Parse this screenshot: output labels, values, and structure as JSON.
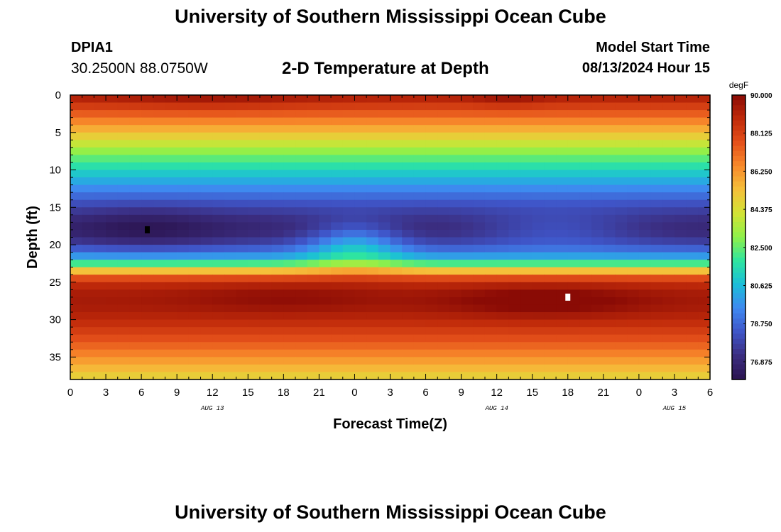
{
  "header": {
    "title": "University of Southern Mississippi Ocean Cube",
    "station_id": "DPIA1",
    "coords": "30.2500N  88.0750W",
    "plot_title": "2-D Temperature at Depth",
    "model_label": "Model Start Time",
    "model_time": "08/13/2024 Hour 15"
  },
  "footer": {
    "title": "University of Southern Mississippi Ocean Cube"
  },
  "chart_data": {
    "type": "heatmap",
    "title": "2-D Temperature at Depth",
    "xlabel": "Forecast Time(Z)",
    "ylabel": "Depth (ft)",
    "x_ticks": [
      "0",
      "3",
      "6",
      "9",
      "12",
      "15",
      "18",
      "21",
      "0",
      "3",
      "6",
      "9",
      "12",
      "15",
      "18",
      "21",
      "0",
      "3",
      "6"
    ],
    "x_range_hours": [
      0,
      54
    ],
    "day_labels": [
      {
        "label": "AUG 13",
        "hour": 12
      },
      {
        "label": "AUG 14",
        "hour": 36
      },
      {
        "label": "AUG 15",
        "hour": 51
      }
    ],
    "y_ticks": [
      0,
      5,
      10,
      15,
      20,
      25,
      30,
      35
    ],
    "y_range": [
      0,
      38
    ],
    "y_inverted": true,
    "colorbar": {
      "unit": "degF",
      "min": 76.0,
      "max": 90.0,
      "labels": [
        "90.000",
        "88.125",
        "86.250",
        "84.375",
        "82.500",
        "80.625",
        "78.750",
        "76.875"
      ],
      "colors": [
        "#2b1450",
        "#3b2d80",
        "#3f55c8",
        "#3f88f0",
        "#1bbdd9",
        "#2ee5a0",
        "#8ef04a",
        "#d2e335",
        "#f5c03a",
        "#f88a2b",
        "#e4501a",
        "#c02a0a",
        "#8a0b05"
      ]
    },
    "depth_profile": [
      {
        "depth": 0,
        "value": 89.4
      },
      {
        "depth": 1,
        "value": 88.6
      },
      {
        "depth": 2,
        "value": 87.8
      },
      {
        "depth": 3,
        "value": 87.0
      },
      {
        "depth": 4,
        "value": 86.2
      },
      {
        "depth": 5,
        "value": 85.3
      },
      {
        "depth": 6,
        "value": 84.4
      },
      {
        "depth": 7,
        "value": 83.5
      },
      {
        "depth": 8,
        "value": 82.7
      },
      {
        "depth": 9,
        "value": 82.0
      },
      {
        "depth": 10,
        "value": 81.3
      },
      {
        "depth": 11,
        "value": 80.6
      },
      {
        "depth": 12,
        "value": 79.9
      },
      {
        "depth": 13,
        "value": 79.2
      },
      {
        "depth": 14,
        "value": 78.5
      },
      {
        "depth": 15,
        "value": 77.9
      },
      {
        "depth": 16,
        "value": 77.4
      },
      {
        "depth": 17,
        "value": 77.0
      },
      {
        "depth": 18,
        "value": 76.9
      },
      {
        "depth": 19,
        "value": 77.2
      },
      {
        "depth": 20,
        "value": 78.0
      },
      {
        "depth": 21,
        "value": 79.2
      },
      {
        "depth": 22,
        "value": 80.6
      },
      {
        "depth": 23,
        "value": 83.6
      },
      {
        "depth": 24,
        "value": 87.0
      },
      {
        "depth": 25,
        "value": 88.6
      },
      {
        "depth": 26,
        "value": 89.2
      },
      {
        "depth": 27,
        "value": 89.4
      },
      {
        "depth": 28,
        "value": 89.4
      },
      {
        "depth": 29,
        "value": 89.2
      },
      {
        "depth": 30,
        "value": 88.9
      },
      {
        "depth": 31,
        "value": 88.5
      },
      {
        "depth": 32,
        "value": 88.0
      },
      {
        "depth": 33,
        "value": 87.5
      },
      {
        "depth": 34,
        "value": 87.0
      },
      {
        "depth": 35,
        "value": 86.4
      },
      {
        "depth": 36,
        "value": 85.8
      },
      {
        "depth": 37,
        "value": 85.2
      },
      {
        "depth": 38,
        "value": 84.6
      }
    ],
    "anomalies": [
      {
        "hour": 6.5,
        "depth": 18,
        "radius_hours": 6,
        "radius_depth": 3,
        "delta": -0.8
      },
      {
        "hour": 24,
        "depth": 20,
        "radius_hours": 4,
        "radius_depth": 3,
        "delta": 2.5
      },
      {
        "hour": 41,
        "depth": 18,
        "radius_hours": 7,
        "radius_depth": 2.5,
        "delta": 1.2
      },
      {
        "hour": 18,
        "depth": 27,
        "radius_hours": 8,
        "radius_depth": 2,
        "delta": 0.5
      },
      {
        "hour": 40,
        "depth": 27.5,
        "radius_hours": 8,
        "radius_depth": 2,
        "delta": 1.0
      },
      {
        "hour": 12,
        "depth": 0,
        "radius_hours": 8,
        "radius_depth": 2,
        "delta": 0.5
      },
      {
        "hour": 37,
        "depth": 0,
        "radius_hours": 3,
        "radius_depth": 1.5,
        "delta": 0.6
      }
    ],
    "markers": [
      {
        "name": "min-temp-marker",
        "hour": 6.5,
        "depth": 18,
        "color": "#000000"
      },
      {
        "name": "max-temp-marker",
        "hour": 42,
        "depth": 27,
        "color": "#ffffff"
      }
    ]
  }
}
